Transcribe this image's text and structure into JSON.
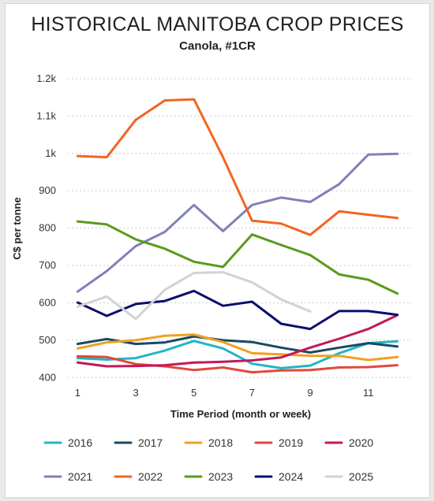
{
  "window": {
    "title": "HISTORICAL MANITOBA CROP PRICES",
    "subtitle": "Canola, #1CR"
  },
  "chart_data": {
    "type": "line",
    "title": "HISTORICAL MANITOBA CROP PRICES",
    "subtitle": "Canola, #1CR",
    "xlabel": "Time Period (month or week)",
    "ylabel": "C$ per tonne",
    "x_ticks": [
      "1",
      "3",
      "5",
      "7",
      "9",
      "11"
    ],
    "y_ticks": [
      "400",
      "500",
      "600",
      "700",
      "800",
      "900",
      "1k",
      "1.1k",
      "1.2k"
    ],
    "y_tick_values": [
      400,
      500,
      600,
      700,
      800,
      900,
      1000,
      1100,
      1200
    ],
    "xlim": [
      0.5,
      12.5
    ],
    "ylim": [
      390,
      1200
    ],
    "grid": "horizontal dashed",
    "legend": "bottom",
    "series": [
      {
        "name": "2016",
        "color": "#22b5c5",
        "x": [
          1,
          2,
          3,
          4,
          5,
          6,
          7,
          8,
          9,
          10,
          11,
          12
        ],
        "values": [
          452,
          448,
          452,
          472,
          498,
          478,
          437,
          425,
          432,
          465,
          492,
          497
        ]
      },
      {
        "name": "2017",
        "color": "#174a63",
        "x": [
          1,
          2,
          3,
          4,
          5,
          6,
          7,
          8,
          9,
          10,
          11,
          12
        ],
        "values": [
          490,
          503,
          490,
          494,
          510,
          500,
          495,
          480,
          467,
          480,
          492,
          483
        ]
      },
      {
        "name": "2018",
        "color": "#f0a020",
        "x": [
          1,
          2,
          3,
          4,
          5,
          6,
          7,
          8,
          9,
          10,
          11,
          12
        ],
        "values": [
          478,
          494,
          500,
          512,
          515,
          495,
          465,
          462,
          458,
          458,
          447,
          455
        ]
      },
      {
        "name": "2019",
        "color": "#e0493c",
        "x": [
          1,
          2,
          3,
          4,
          5,
          6,
          7,
          8,
          9,
          10,
          11,
          12
        ],
        "values": [
          457,
          455,
          436,
          430,
          420,
          427,
          414,
          419,
          420,
          427,
          428,
          433
        ]
      },
      {
        "name": "2020",
        "color": "#c2185b",
        "x": [
          1,
          2,
          3,
          4,
          5,
          6,
          7,
          8,
          9,
          10,
          11,
          12
        ],
        "values": [
          440,
          430,
          431,
          433,
          440,
          442,
          446,
          454,
          480,
          504,
          530,
          567
        ]
      },
      {
        "name": "2021",
        "color": "#8080bb",
        "x": [
          1,
          2,
          3,
          4,
          5,
          6,
          7,
          8,
          9,
          10,
          11,
          12
        ],
        "values": [
          630,
          685,
          752,
          790,
          862,
          792,
          862,
          882,
          870,
          918,
          997,
          999
        ]
      },
      {
        "name": "2022",
        "color": "#f26522",
        "x": [
          1,
          2,
          3,
          4,
          5,
          6,
          7,
          8,
          9,
          10,
          11,
          12
        ],
        "values": [
          993,
          990,
          1090,
          1142,
          1145,
          990,
          820,
          812,
          782,
          845,
          836,
          827
        ]
      },
      {
        "name": "2023",
        "color": "#5a9a1c",
        "x": [
          1,
          2,
          3,
          4,
          5,
          6,
          7,
          8,
          9,
          10,
          11,
          12
        ],
        "values": [
          818,
          810,
          770,
          745,
          710,
          696,
          783,
          755,
          728,
          676,
          662,
          625
        ]
      },
      {
        "name": "2024",
        "color": "#0c0c6e",
        "x": [
          1,
          2,
          3,
          4,
          5,
          6,
          7,
          8,
          9,
          10,
          11,
          12
        ],
        "values": [
          601,
          565,
          597,
          605,
          632,
          592,
          603,
          544,
          530,
          578,
          578,
          568
        ]
      },
      {
        "name": "2025",
        "color": "#d2d2d2",
        "x": [
          1,
          2,
          3,
          4,
          5,
          6,
          7,
          8,
          9
        ],
        "values": [
          590,
          617,
          557,
          635,
          680,
          682,
          655,
          609,
          577
        ]
      }
    ]
  }
}
